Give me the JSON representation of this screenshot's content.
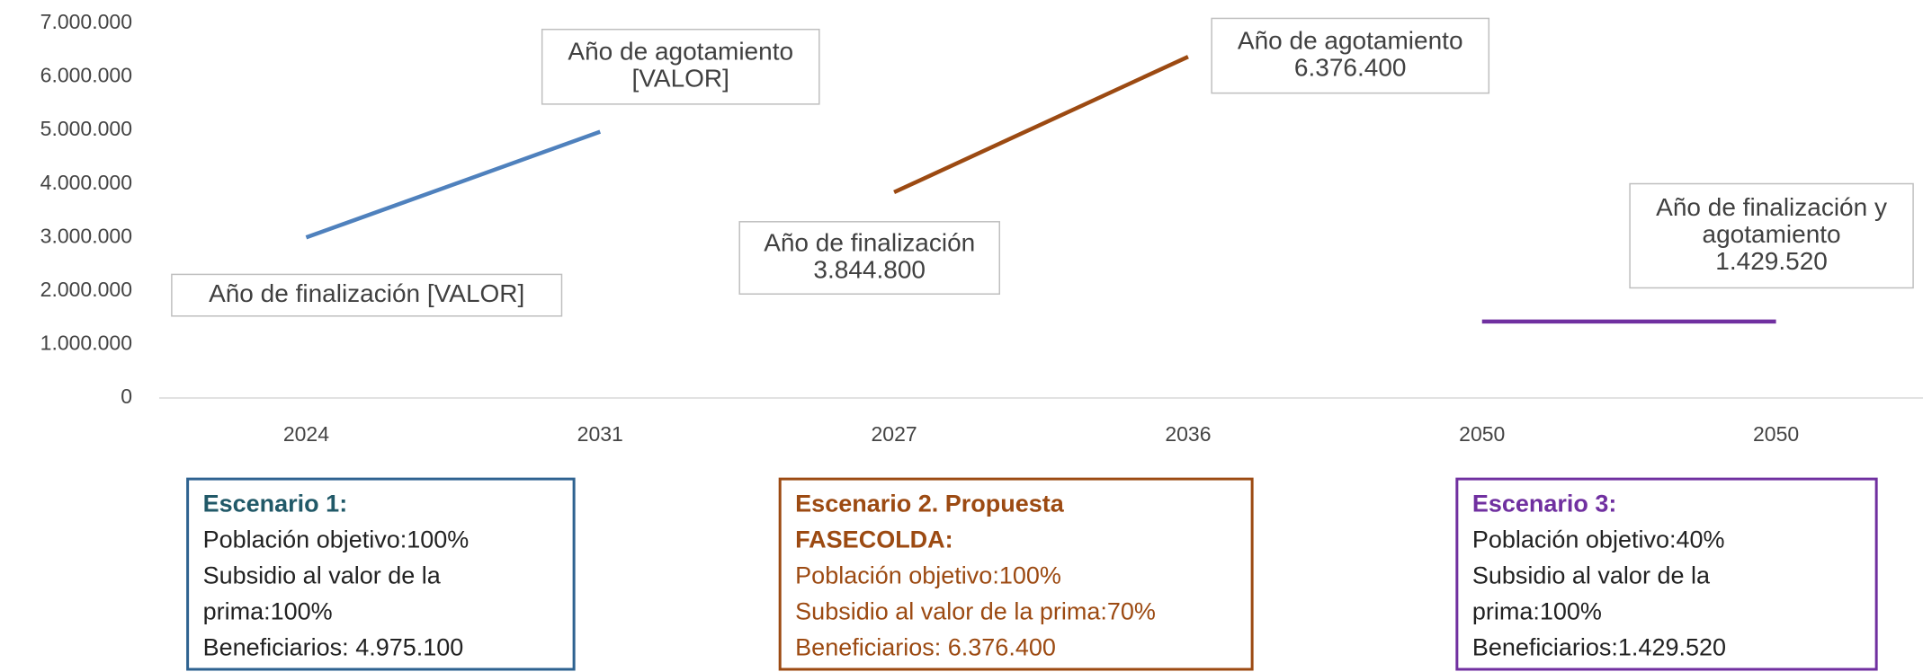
{
  "chart_data": {
    "type": "line",
    "categories": [
      "2024",
      "2031",
      "2027",
      "2036",
      "2050",
      "2050"
    ],
    "series": [
      {
        "name": "Escenario 1",
        "color": "#4f81bd",
        "values": [
          3000000,
          4975100,
          null,
          null,
          null,
          null
        ]
      },
      {
        "name": "Escenario 2",
        "color": "#9c4a12",
        "values": [
          null,
          null,
          3844800,
          6376400,
          null,
          null
        ]
      },
      {
        "name": "Escenario 3",
        "color": "#7030a0",
        "values": [
          null,
          null,
          null,
          null,
          1429520,
          1429520
        ]
      }
    ],
    "ylim": [
      0,
      7000000
    ],
    "yticks": [
      0,
      {
        "value": 1000000,
        "label": "1.000.000"
      },
      {
        "value": 2000000,
        "label": "2.000.000"
      },
      {
        "value": 3000000,
        "label": "3.000.000"
      },
      {
        "value": 4000000,
        "label": "4.000.000"
      },
      {
        "value": 5000000,
        "label": "5.000.000"
      },
      {
        "value": 6000000,
        "label": "6.000.000"
      },
      {
        "value": 7000000,
        "label": "7.000.000"
      }
    ],
    "annotations": [
      {
        "lines": [
          "Año de finalización  [VALOR]"
        ]
      },
      {
        "lines": [
          "Año de agotamiento",
          "[VALOR]"
        ]
      },
      {
        "lines": [
          "Año de finalización",
          "3.844.800"
        ]
      },
      {
        "lines": [
          "Año de agotamiento",
          "6.376.400"
        ]
      },
      {
        "lines": [
          "Año de finalización y",
          "agotamiento",
          "1.429.520"
        ]
      }
    ],
    "scenarios": [
      {
        "title": [
          "Escenario 1:"
        ],
        "lines": [
          "Población objetivo:100%",
          "Subsidio al valor de la",
          "prima:100%",
          "Beneficiarios: 4.975.100"
        ],
        "border_color": "#2e6290",
        "title_color": "#215968",
        "text_color": "#222222"
      },
      {
        "title": [
          "Escenario 2. Propuesta",
          "FASECOLDA:"
        ],
        "lines": [
          "Población objetivo:100%",
          "Subsidio al valor de la prima:70%",
          "Beneficiarios: 6.376.400"
        ],
        "border_color": "#9c4a12",
        "title_color": "#9c4a12",
        "text_color": "#9c4a12"
      },
      {
        "title": [
          "Escenario 3:"
        ],
        "lines": [
          "Población objetivo:40%",
          "Subsidio al valor de la",
          "prima:100%",
          "Beneficiarios:1.429.520"
        ],
        "border_color": "#7030a0",
        "title_color": "#7030a0",
        "text_color": "#222222"
      }
    ]
  }
}
